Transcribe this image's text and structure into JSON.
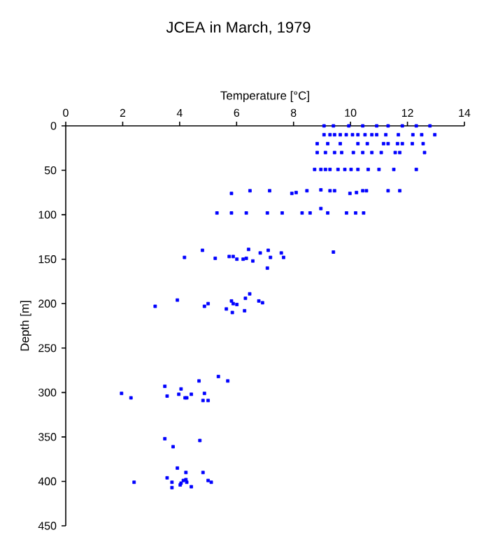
{
  "chart_data": {
    "type": "scatter",
    "title": "JCEA in March, 1979",
    "xlabel": "Temperature [°C]",
    "ylabel": "Depth [m]",
    "xlim": [
      0,
      14
    ],
    "xticks": [
      0,
      2,
      4,
      6,
      8,
      10,
      12,
      14
    ],
    "ylim": [
      450,
      0
    ],
    "yticks": [
      0,
      50,
      100,
      150,
      200,
      250,
      300,
      350,
      400,
      450
    ],
    "marker": "square",
    "series": [
      {
        "color": "#0000ff",
        "x": [
          9.07,
          9.4,
          9.94,
          10.43,
          10.92,
          11.32,
          11.82,
          12.31,
          12.79,
          9.07,
          9.28,
          9.44,
          9.64,
          9.85,
          10.07,
          10.26,
          10.51,
          10.75,
          10.92,
          11.24,
          11.68,
          12.19,
          12.5,
          12.96,
          8.83,
          9.2,
          9.64,
          10.26,
          10.59,
          11.16,
          11.32,
          11.65,
          11.82,
          12.17,
          12.55,
          8.83,
          9.12,
          9.44,
          9.69,
          10.1,
          10.43,
          10.75,
          11.08,
          11.57,
          11.73,
          12.6,
          8.74,
          8.96,
          9.12,
          9.28,
          9.56,
          9.8,
          10.02,
          10.26,
          10.62,
          11.0,
          11.52,
          12.31,
          5.82,
          6.47,
          7.16,
          7.94,
          8.09,
          8.47,
          8.96,
          9.28,
          9.44,
          9.98,
          10.21,
          10.43,
          10.56,
          11.32,
          11.73,
          5.31,
          5.82,
          6.34,
          7.08,
          7.6,
          8.3,
          8.58,
          8.96,
          9.2,
          9.86,
          10.18,
          10.46,
          4.17,
          4.8,
          5.25,
          5.74,
          5.88,
          6.01,
          6.23,
          6.34,
          6.42,
          6.57,
          6.83,
          7.11,
          7.19,
          7.57,
          7.65,
          7.08,
          9.4,
          3.14,
          3.92,
          4.87,
          5.0,
          5.64,
          5.82,
          5.88,
          5.85,
          6.01,
          6.28,
          6.31,
          6.46,
          6.78,
          6.91,
          1.96,
          2.29,
          3.48,
          3.56,
          4.05,
          3.97,
          4.19,
          4.25,
          4.41,
          4.68,
          4.82,
          4.87,
          5.0,
          5.36,
          5.69,
          3.48,
          3.77,
          4.71,
          3.92,
          3.56,
          4.22,
          4.82,
          2.4,
          3.73,
          4.05,
          4.13,
          4.22,
          4.02,
          4.25,
          4.41,
          3.73,
          5.0,
          5.11
        ],
        "values": [
          0,
          0,
          0,
          0,
          0,
          0,
          0,
          0,
          0,
          10,
          10,
          10,
          10,
          10,
          10,
          10,
          10,
          10,
          10,
          10,
          10,
          10,
          10,
          10,
          20,
          20,
          20,
          20,
          20,
          20,
          20,
          20,
          20,
          20,
          20,
          30,
          30,
          30,
          30,
          30,
          30,
          30,
          30,
          30,
          30,
          30,
          49,
          49,
          49,
          49,
          49,
          49,
          49,
          49,
          49,
          49,
          49,
          49,
          76,
          73,
          73,
          76,
          75,
          73,
          72,
          73,
          73,
          76,
          75,
          73,
          73,
          73,
          73,
          98,
          98,
          98,
          98,
          98,
          98,
          98,
          93,
          98,
          98,
          98,
          98,
          148,
          140,
          149,
          147,
          147,
          150,
          150,
          149,
          139,
          152,
          143,
          140,
          148,
          143,
          148,
          160,
          142,
          203,
          196,
          203,
          200,
          206,
          197,
          200,
          210,
          201,
          208,
          194,
          189,
          197,
          199,
          301,
          306,
          293,
          304,
          296,
          302,
          306,
          306,
          302,
          287,
          309,
          301,
          309,
          282,
          287,
          352,
          361,
          354,
          385,
          396,
          390,
          390,
          401,
          401,
          402,
          399,
          398,
          404,
          401,
          406,
          407,
          399,
          401
        ]
      }
    ]
  }
}
